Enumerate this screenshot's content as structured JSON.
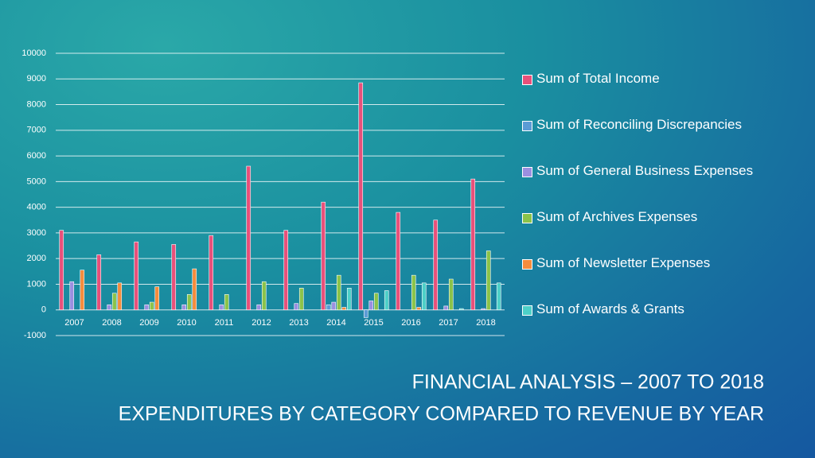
{
  "chart_data": {
    "type": "bar",
    "title": "FINANCIAL ANALYSIS – 2007 TO 2018",
    "subtitle": "EXPENDITURES BY CATEGORY COMPARED TO REVENUE BY YEAR",
    "categories": [
      "2007",
      "2008",
      "2009",
      "2010",
      "2011",
      "2012",
      "2013",
      "2014",
      "2015",
      "2016",
      "2017",
      "2018"
    ],
    "series": [
      {
        "name": "Sum of Total Income",
        "color": "#e8507a",
        "values": [
          3100,
          2150,
          2650,
          2550,
          2900,
          5600,
          3100,
          4200,
          8850,
          3800,
          3500,
          5100
        ]
      },
      {
        "name": "Sum of Reconciling Discrepancies",
        "color": "#5b9bd5",
        "values": [
          0,
          0,
          0,
          0,
          0,
          0,
          0,
          200,
          -300,
          0,
          0,
          0
        ]
      },
      {
        "name": "Sum of General Business Expenses",
        "color": "#9b8fe0",
        "values": [
          1100,
          200,
          200,
          200,
          200,
          200,
          250,
          300,
          350,
          0,
          150,
          50
        ]
      },
      {
        "name": "Sum of Archives Expenses",
        "color": "#8bc34a",
        "values": [
          0,
          650,
          300,
          600,
          600,
          1100,
          850,
          1350,
          650,
          1350,
          1200,
          2300
        ]
      },
      {
        "name": "Sum of Newsletter Expenses",
        "color": "#f58c3c",
        "values": [
          1550,
          1050,
          900,
          1600,
          0,
          0,
          0,
          100,
          0,
          100,
          0,
          0
        ]
      },
      {
        "name": "Sum of Awards & Grants",
        "color": "#4dd0c8",
        "values": [
          0,
          0,
          0,
          0,
          0,
          0,
          0,
          850,
          750,
          1050,
          50,
          1050
        ]
      }
    ],
    "ylim": [
      -1000,
      10000
    ],
    "yticks": [
      -1000,
      0,
      1000,
      2000,
      3000,
      4000,
      5000,
      6000,
      7000,
      8000,
      9000,
      10000
    ],
    "grid": true,
    "legend": "right"
  }
}
